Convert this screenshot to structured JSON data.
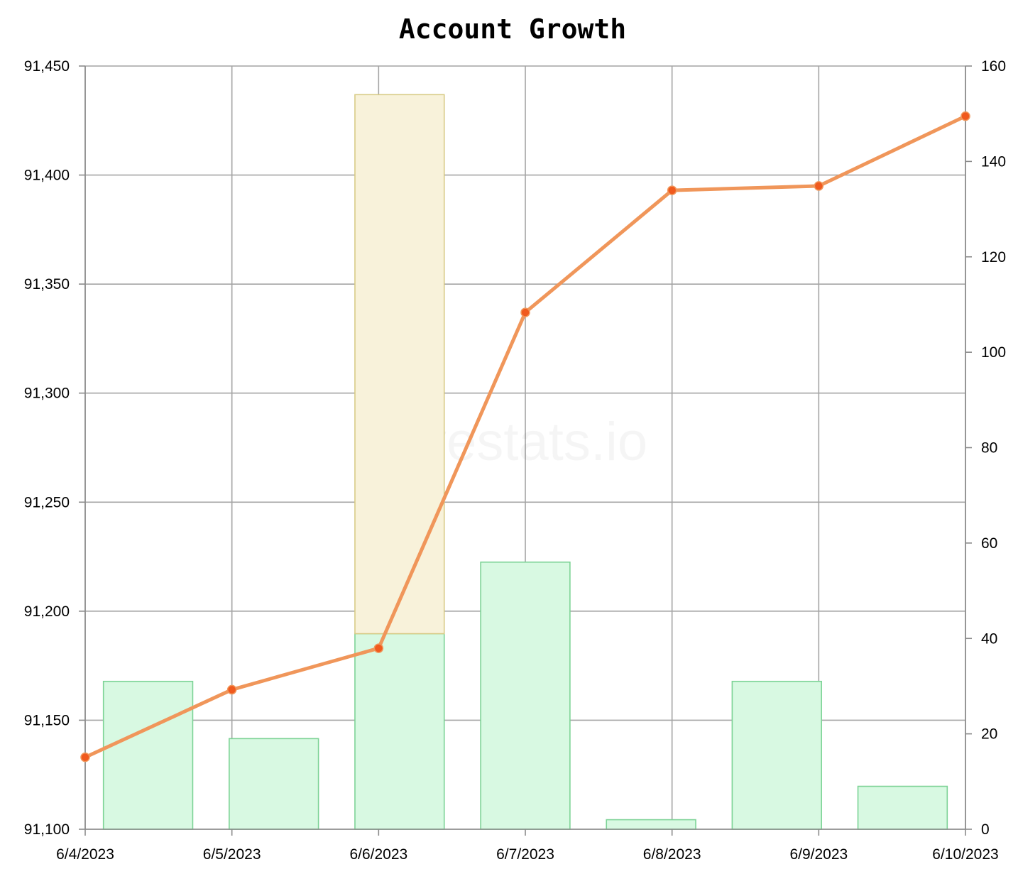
{
  "chart_data": {
    "type": "bar+line",
    "title": "Account Growth",
    "watermark": "hivestats.io",
    "x_tick_labels": [
      "6/4/2023",
      "6/5/2023",
      "6/6/2023",
      "6/7/2023",
      "6/8/2023",
      "6/9/2023",
      "6/10/2023"
    ],
    "left_axis": {
      "ylim": [
        91100,
        91450
      ],
      "ticks": [
        91100,
        91150,
        91200,
        91250,
        91300,
        91350,
        91400,
        91450
      ],
      "tick_labels": [
        "91,100",
        "91,150",
        "91,200",
        "91,250",
        "91,300",
        "91,350",
        "91,400",
        "91,450"
      ]
    },
    "right_axis": {
      "ylim": [
        0,
        160
      ],
      "ticks": [
        0,
        20,
        40,
        60,
        80,
        100,
        120,
        140,
        160
      ],
      "tick_labels": [
        "0",
        "20",
        "40",
        "60",
        "80",
        "100",
        "120",
        "140",
        "160"
      ]
    },
    "line_series": {
      "axis": "left",
      "color": "#f0965a",
      "marker_color": "#f05a1e",
      "x": [
        "6/4/2023",
        "6/5/2023",
        "6/6/2023",
        "6/7/2023",
        "6/8/2023",
        "6/9/2023",
        "6/10/2023"
      ],
      "values": [
        91133,
        91164,
        91183,
        91337,
        91393,
        91395,
        91427
      ]
    },
    "bar_series": [
      {
        "axis": "right",
        "fill": "#d8f9e2",
        "stroke": "#7dd396",
        "categories": [
          "6/4/2023",
          "6/5/2023",
          "6/6/2023",
          "6/7/2023",
          "6/8/2023",
          "6/9/2023",
          "6/10/2023"
        ],
        "values": [
          31,
          19,
          41,
          56,
          2,
          31,
          9
        ]
      },
      {
        "axis": "right",
        "fill": "#f8f2da",
        "stroke": "#d8cb86",
        "categories": [
          "6/6/2023"
        ],
        "values": [
          113
        ],
        "stacked_on_previous": true
      }
    ],
    "grid": true,
    "legend": "none"
  }
}
